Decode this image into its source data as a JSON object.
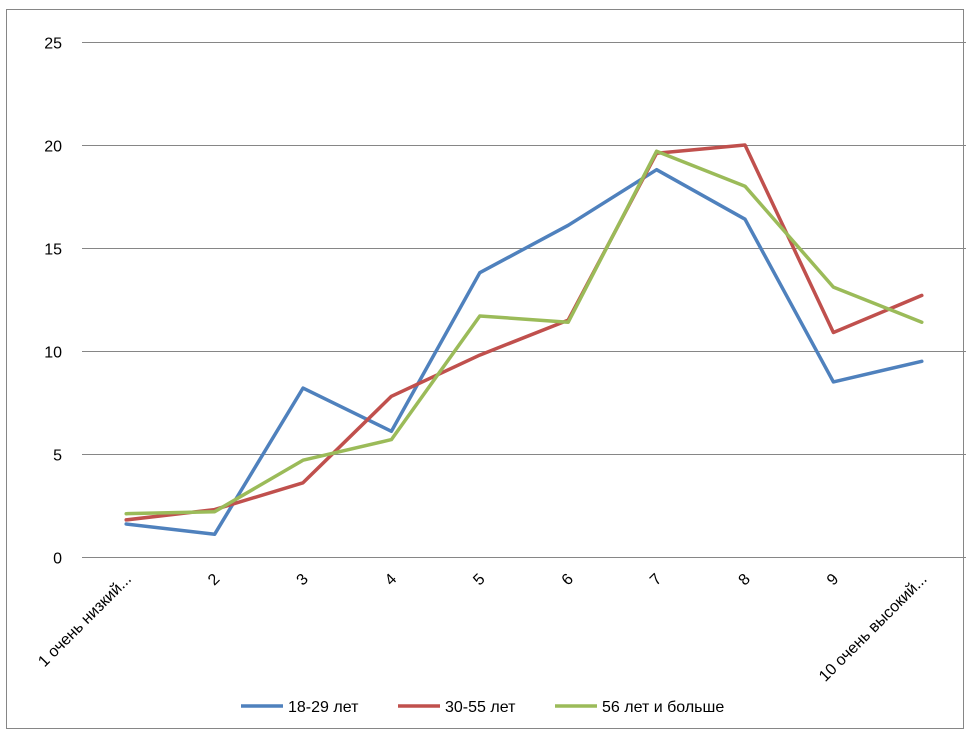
{
  "chart_data": {
    "type": "line",
    "categories": [
      "1 очень низкий...",
      "2",
      "3",
      "4",
      "5",
      "6",
      "7",
      "8",
      "9",
      "10 очень высокий..."
    ],
    "ylim": [
      0,
      25
    ],
    "yticks": [
      0,
      5,
      10,
      15,
      20,
      25
    ],
    "grid": true,
    "legend_position": "bottom",
    "series": [
      {
        "name": "18-29 лет",
        "color": "#4F81BD",
        "values": [
          1.6,
          1.1,
          8.2,
          6.1,
          13.8,
          16.1,
          18.8,
          16.4,
          8.5,
          9.5
        ]
      },
      {
        "name": "30-55 лет",
        "color": "#C0504D",
        "values": [
          1.8,
          2.3,
          3.6,
          7.8,
          9.8,
          11.5,
          19.6,
          20.0,
          10.9,
          12.7
        ]
      },
      {
        "name": "56 лет и больше",
        "color": "#9BBB59",
        "values": [
          2.1,
          2.2,
          4.7,
          5.7,
          11.7,
          11.4,
          19.7,
          18.0,
          13.1,
          11.4
        ]
      }
    ]
  }
}
